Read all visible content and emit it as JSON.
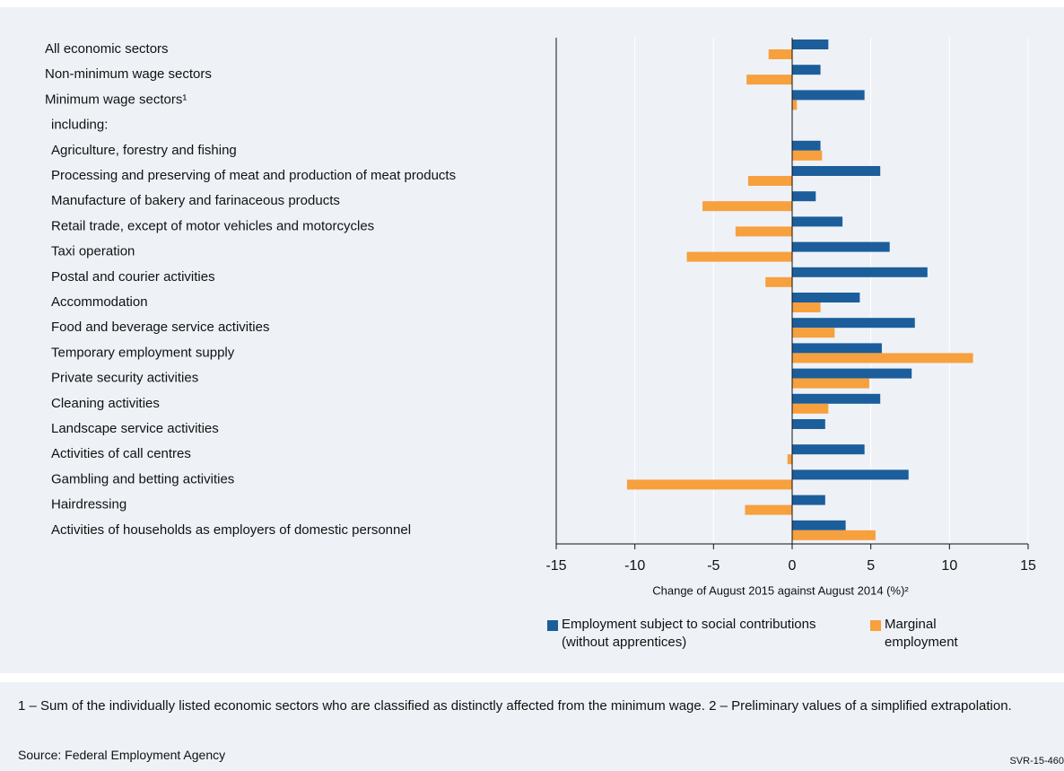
{
  "chart_data": {
    "type": "hbar",
    "categories": [
      "All economic sectors",
      "Non-minimum wage sectors",
      "Minimum wage sectors¹",
      "including:",
      "Agriculture, forestry and fishing",
      "Processing and preserving of meat and production of meat products",
      "Manufacture of bakery and farinaceous products",
      "Retail trade, except of motor vehicles and motorcycles",
      "Taxi operation",
      "Postal and courier activities",
      "Accommodation",
      "Food and beverage service activities",
      "Temporary employment supply",
      "Private security activities",
      "Cleaning activities",
      "Landscape service activities",
      "Activities of call centres",
      "Gambling and betting activities",
      "Hairdressing",
      "Activities of households as employers of domestic personnel"
    ],
    "series": [
      {
        "name": "Employment subject to social contributions (without apprentices)",
        "color": "#1b5e9b",
        "values": [
          2.3,
          1.8,
          4.6,
          null,
          1.8,
          5.6,
          1.5,
          3.2,
          6.2,
          8.6,
          4.3,
          7.8,
          5.7,
          7.6,
          5.6,
          2.1,
          4.6,
          7.4,
          2.1,
          3.4
        ]
      },
      {
        "name": "Marginal employment",
        "color": "#f7a03e",
        "values": [
          -1.5,
          -2.9,
          0.3,
          null,
          1.9,
          -2.8,
          -5.7,
          -3.6,
          -6.7,
          -1.7,
          1.8,
          2.7,
          11.5,
          4.9,
          2.3,
          0,
          -0.3,
          -10.5,
          -3.0,
          5.3
        ]
      }
    ],
    "xlim": [
      -15,
      15
    ],
    "xticks": [
      -15,
      -10,
      -5,
      0,
      5,
      10,
      15
    ],
    "xlabel": "Change of August 2015 against August 2014 (%)²",
    "grid": true
  },
  "notes": "1 – Sum of the individually listed economic sectors who are classified as distinctly affected from the minimum wage.  2 – Preliminary values of a simplified extrapolation.",
  "source": "Source: Federal Employment Agency",
  "code": "SVR-15-460"
}
